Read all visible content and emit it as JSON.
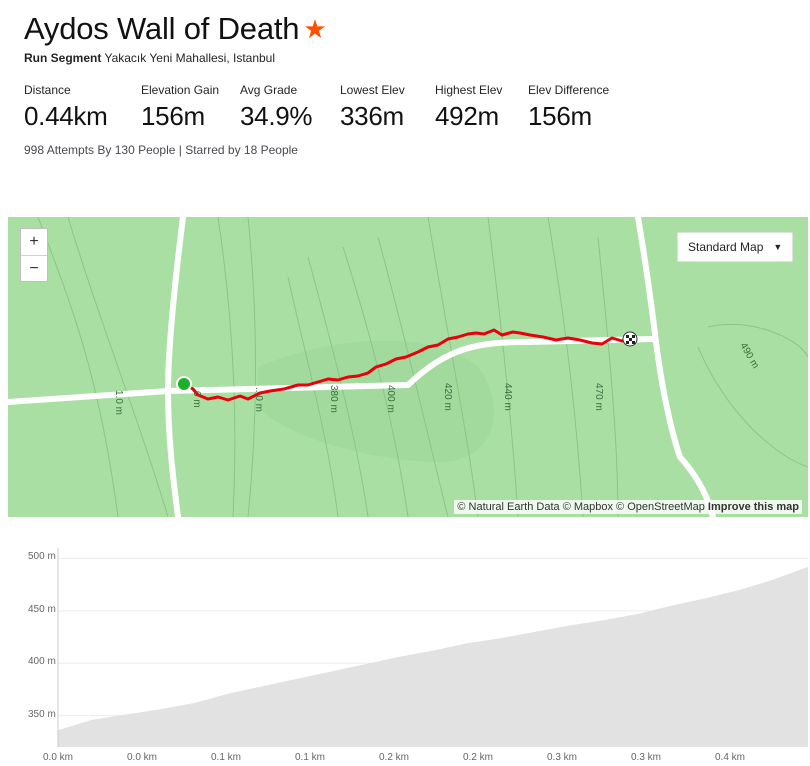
{
  "segment": {
    "title": "Aydos Wall of Death",
    "star_icon": "star-icon",
    "type_label": "Run Segment",
    "location": "Yakacık Yeni Mahallesi, Istanbul",
    "attempts_text": "998 Attempts By 130 People | Starred by 18 People"
  },
  "stats": [
    {
      "label": "Distance",
      "value": "0.44km"
    },
    {
      "label": "Elevation Gain",
      "value": "156m"
    },
    {
      "label": "Avg Grade",
      "value": "34.9%"
    },
    {
      "label": "Lowest Elev",
      "value": "336m"
    },
    {
      "label": "Highest Elev",
      "value": "492m"
    },
    {
      "label": "Elev Difference",
      "value": "156m"
    }
  ],
  "map": {
    "zoom_in": "+",
    "zoom_out": "−",
    "style_selector": "Standard Map",
    "contour_labels": [
      "1.0 m",
      "0 m",
      "...0 m",
      "380 m",
      "400 m",
      "420 m",
      "440 m",
      "470 m",
      "490 m"
    ],
    "attribution": "© Natural Earth Data © Mapbox © OpenStreetMap",
    "improve_link": "Improve this map",
    "colors": {
      "land": "#a9dfa3",
      "route": "#e8000b",
      "start": "#1eb02b",
      "road": "#ffffff"
    }
  },
  "chart_data": {
    "type": "area",
    "title": "",
    "xlabel": "",
    "ylabel": "",
    "y_ticks": [
      "500 m",
      "450 m",
      "400 m",
      "350 m"
    ],
    "x_ticks": [
      "0.0 km",
      "0.0 km",
      "0.1 km",
      "0.1 km",
      "0.2 km",
      "0.2 km",
      "0.3 km",
      "0.3 km",
      "0.4 km"
    ],
    "ylim": [
      320,
      510
    ],
    "xlim": [
      0,
      0.44
    ],
    "grid": true,
    "x": [
      0,
      0.02,
      0.04,
      0.06,
      0.08,
      0.1,
      0.12,
      0.14,
      0.16,
      0.18,
      0.2,
      0.22,
      0.24,
      0.26,
      0.28,
      0.3,
      0.32,
      0.34,
      0.36,
      0.38,
      0.4,
      0.42,
      0.44
    ],
    "y": [
      336,
      346,
      351,
      356,
      362,
      371,
      378,
      385,
      392,
      399,
      406,
      412,
      419,
      424,
      430,
      436,
      441,
      447,
      455,
      462,
      470,
      480,
      492
    ],
    "fill_color": "#e2e2e2"
  }
}
